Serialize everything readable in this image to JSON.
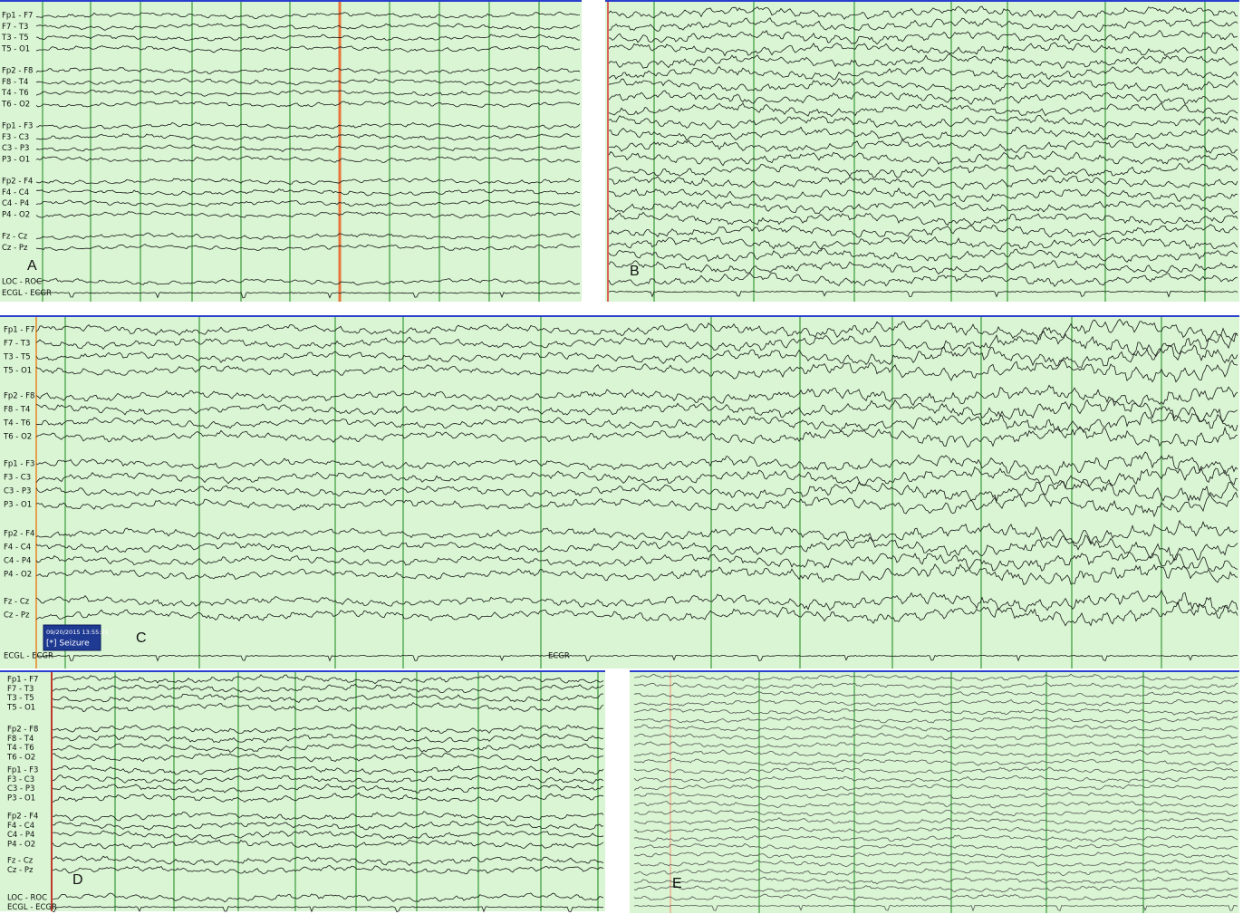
{
  "panels": [
    {
      "letter": "A",
      "channel_groups": [
        [
          "Fp1 - F7",
          "F7 - T3",
          "T3 - T5",
          "T5 - O1"
        ],
        [
          "Fp2 - F8",
          "F8 - T4",
          "T4 - T6",
          "T6 - O2"
        ],
        [
          "Fp1 - F3",
          "F3 - C3",
          "C3 - P3",
          "P3 - O1"
        ],
        [
          "Fp2 - F4",
          "F4 - C4",
          "C4 - P4",
          "P4 - O2"
        ],
        [
          "Fz - Cz",
          "Cz - Pz"
        ],
        [
          "LOC - ROC",
          "ECGL - ECGR"
        ]
      ]
    },
    {
      "letter": "B"
    },
    {
      "letter": "C",
      "channel_groups": [
        [
          "Fp1 - F7",
          "F7 - T3",
          "T3 - T5",
          "T5 - O1"
        ],
        [
          "Fp2 - F8",
          "F8 - T4",
          "T4 - T6",
          "T6 - O2"
        ],
        [
          "Fp1 - F3",
          "F3 - C3",
          "C3 - P3",
          "P3 - O1"
        ],
        [
          "Fp2 - F4",
          "F4 - C4",
          "C4 - P4",
          "P4 - O2"
        ],
        [
          "Fz - Cz",
          "Cz - Pz"
        ],
        [
          "ECGL - ECGR"
        ]
      ],
      "ecg_label": "ECGR",
      "annotation": {
        "time": "09/20/2015 13:55:21",
        "text": "[*] Seizure"
      }
    },
    {
      "letter": "D",
      "channel_groups": [
        [
          "Fp1 - F7",
          "F7 - T3",
          "T3 - T5",
          "T5 - O1"
        ],
        [
          "Fp2 - F8",
          "F8 - T4",
          "T4 - T6",
          "T6 - O2"
        ],
        [
          "Fp1 - F3",
          "F3 - C3",
          "C3 - P3",
          "P3 - O1"
        ],
        [
          "Fp2 - F4",
          "F4 - C4",
          "C4 - P4",
          "P4 - O2"
        ],
        [
          "Fz - Cz",
          "Cz - Pz"
        ],
        [
          "LOC - ROC",
          "ECGL - ECGR"
        ]
      ]
    },
    {
      "letter": "E"
    }
  ]
}
